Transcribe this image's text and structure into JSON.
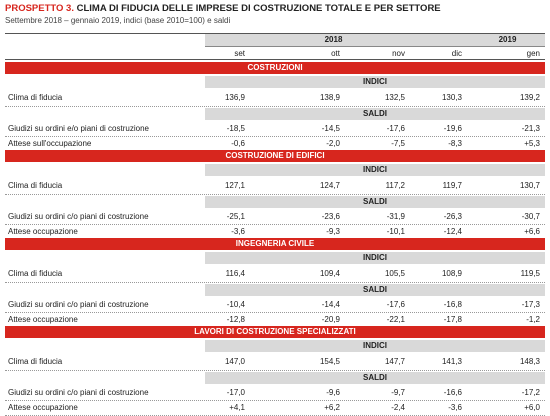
{
  "title": {
    "label": "PROSPETTO 3.",
    "text": "CLIMA DI FIDUCIA DELLE IMPRESE DI COSTRUZIONE TOTALE E PER SETTORE"
  },
  "subtitle": "Settembre 2018 – gennaio 2019, indici (base 2010=100) e saldi",
  "header": {
    "years": [
      "2018",
      "2019"
    ],
    "months": [
      "set",
      "ott",
      "nov",
      "dic",
      "gen"
    ]
  },
  "sections": [
    {
      "title": "COSTRUZIONI",
      "groups": [
        {
          "title": "INDICI",
          "rows": [
            {
              "label": "Clima di fiducia",
              "values": [
                "136,9",
                "138,9",
                "132,5",
                "130,3",
                "139,2"
              ]
            }
          ]
        },
        {
          "title": "SALDI",
          "rows": [
            {
              "label": "Giudizi su ordini e/o piani di costruzione",
              "values": [
                "-18,5",
                "-14,5",
                "-17,6",
                "-19,6",
                "-21,3"
              ]
            },
            {
              "label": "Attese sull'occupazione",
              "values": [
                "-0,6",
                "-2,0",
                "-7,5",
                "-8,3",
                "+5,3"
              ]
            }
          ]
        }
      ]
    },
    {
      "title": "COSTRUZIONE DI EDIFICI",
      "groups": [
        {
          "title": "INDICI",
          "rows": [
            {
              "label": "Clima di fiducia",
              "values": [
                "127,1",
                "124,7",
                "117,2",
                "119,7",
                "130,7"
              ]
            }
          ]
        },
        {
          "title": "SALDI",
          "rows": [
            {
              "label": "Giudizi su ordini c/o piani di costruzione",
              "values": [
                "-25,1",
                "-23,6",
                "-31,9",
                "-26,3",
                "-30,7"
              ]
            },
            {
              "label": "Attese occupazione",
              "values": [
                "-3,6",
                "-9,3",
                "-10,1",
                "-12,4",
                "+6,6"
              ]
            }
          ]
        }
      ]
    },
    {
      "title": "INGEGNERIA CIVILE",
      "groups": [
        {
          "title": "INDICI",
          "rows": [
            {
              "label": "Clima di fiducia",
              "values": [
                "116,4",
                "109,4",
                "105,5",
                "108,9",
                "119,5"
              ]
            }
          ]
        },
        {
          "title": "SALDI",
          "rows": [
            {
              "label": "Giudizi su ordini c/o piani di costruzione",
              "values": [
                "-10,4",
                "-14,4",
                "-17,6",
                "-16,8",
                "-17,3"
              ]
            },
            {
              "label": "Attese occupazione",
              "values": [
                "-12,8",
                "-20,9",
                "-22,1",
                "-17,8",
                "-1,2"
              ]
            }
          ]
        }
      ]
    },
    {
      "title": "LAVORI DI COSTRUZIONE SPECIALIZZATI",
      "groups": [
        {
          "title": "INDICI",
          "rows": [
            {
              "label": "Clima di fiducia",
              "values": [
                "147,0",
                "154,5",
                "147,7",
                "141,3",
                "148,3"
              ]
            }
          ]
        },
        {
          "title": "SALDI",
          "rows": [
            {
              "label": "Giudizi su ordini c/o piani di costruzione",
              "values": [
                "-17,0",
                "-9,6",
                "-9,7",
                "-16,6",
                "-17,2"
              ]
            },
            {
              "label": "Attese occupazione",
              "values": [
                "+4,1",
                "+6,2",
                "-2,4",
                "-3,6",
                "+6,0"
              ]
            }
          ]
        }
      ]
    }
  ]
}
